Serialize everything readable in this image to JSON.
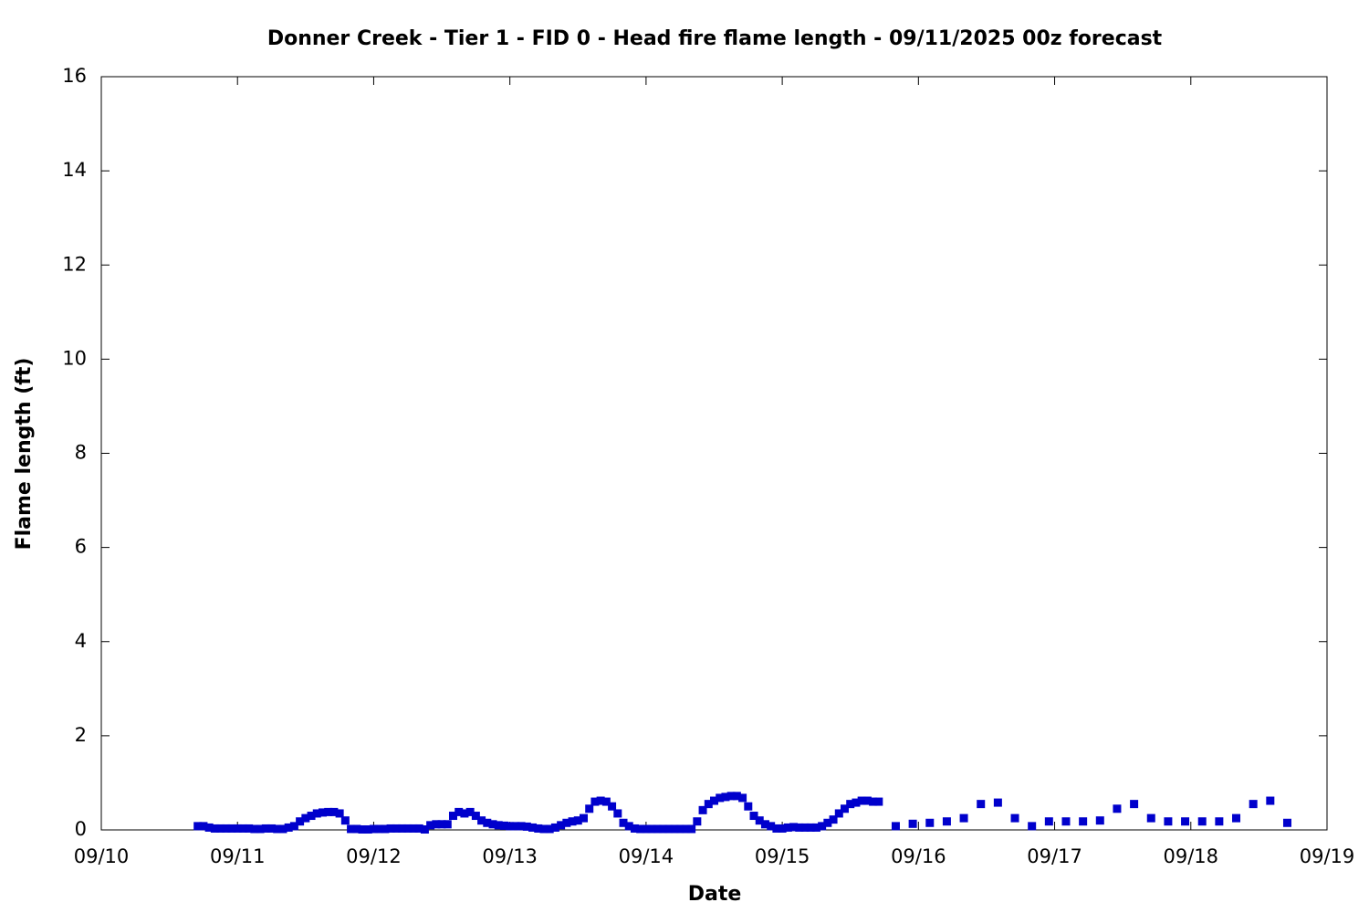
{
  "chart_data": {
    "type": "scatter",
    "title": "Donner Creek - Tier 1 - FID 0 - Head fire flame length - 09/11/2025 00z forecast",
    "xlabel": "Date",
    "ylabel": "Flame length (ft)",
    "color": "#0000cc",
    "x": [
      "09/10 17:00",
      "09/10 18:00",
      "09/10 19:00",
      "09/10 20:00",
      "09/10 21:00",
      "09/10 22:00",
      "09/10 23:00",
      "09/11 00:00",
      "09/11 01:00",
      "09/11 02:00",
      "09/11 03:00",
      "09/11 04:00",
      "09/11 05:00",
      "09/11 06:00",
      "09/11 07:00",
      "09/11 08:00",
      "09/11 09:00",
      "09/11 10:00",
      "09/11 11:00",
      "09/11 12:00",
      "09/11 13:00",
      "09/11 14:00",
      "09/11 15:00",
      "09/11 16:00",
      "09/11 17:00",
      "09/11 18:00",
      "09/11 19:00",
      "09/11 20:00",
      "09/11 21:00",
      "09/11 22:00",
      "09/11 23:00",
      "09/12 00:00",
      "09/12 01:00",
      "09/12 02:00",
      "09/12 03:00",
      "09/12 04:00",
      "09/12 05:00",
      "09/12 06:00",
      "09/12 07:00",
      "09/12 08:00",
      "09/12 09:00",
      "09/12 10:00",
      "09/12 11:00",
      "09/12 12:00",
      "09/12 13:00",
      "09/12 14:00",
      "09/12 15:00",
      "09/12 16:00",
      "09/12 17:00",
      "09/12 18:00",
      "09/12 19:00",
      "09/12 20:00",
      "09/12 21:00",
      "09/12 22:00",
      "09/12 23:00",
      "09/13 00:00",
      "09/13 01:00",
      "09/13 02:00",
      "09/13 03:00",
      "09/13 04:00",
      "09/13 05:00",
      "09/13 06:00",
      "09/13 07:00",
      "09/13 08:00",
      "09/13 09:00",
      "09/13 10:00",
      "09/13 11:00",
      "09/13 12:00",
      "09/13 13:00",
      "09/13 14:00",
      "09/13 15:00",
      "09/13 16:00",
      "09/13 17:00",
      "09/13 18:00",
      "09/13 19:00",
      "09/13 20:00",
      "09/13 21:00",
      "09/13 22:00",
      "09/13 23:00",
      "09/14 00:00",
      "09/14 01:00",
      "09/14 02:00",
      "09/14 03:00",
      "09/14 04:00",
      "09/14 05:00",
      "09/14 06:00",
      "09/14 07:00",
      "09/14 08:00",
      "09/14 09:00",
      "09/14 10:00",
      "09/14 11:00",
      "09/14 12:00",
      "09/14 13:00",
      "09/14 14:00",
      "09/14 15:00",
      "09/14 16:00",
      "09/14 17:00",
      "09/14 18:00",
      "09/14 19:00",
      "09/14 20:00",
      "09/14 21:00",
      "09/14 22:00",
      "09/14 23:00",
      "09/15 00:00",
      "09/15 01:00",
      "09/15 02:00",
      "09/15 03:00",
      "09/15 04:00",
      "09/15 05:00",
      "09/15 06:00",
      "09/15 07:00",
      "09/15 08:00",
      "09/15 09:00",
      "09/15 10:00",
      "09/15 11:00",
      "09/15 12:00",
      "09/15 13:00",
      "09/15 14:00",
      "09/15 15:00",
      "09/15 16:00",
      "09/15 17:00",
      "09/15 20:00",
      "09/15 23:00",
      "09/16 02:00",
      "09/16 05:00",
      "09/16 08:00",
      "09/16 11:00",
      "09/16 14:00",
      "09/16 17:00",
      "09/16 20:00",
      "09/16 23:00",
      "09/17 02:00",
      "09/17 05:00",
      "09/17 08:00",
      "09/17 11:00",
      "09/17 14:00",
      "09/17 17:00",
      "09/17 20:00",
      "09/17 23:00",
      "09/18 02:00",
      "09/18 05:00",
      "09/18 08:00",
      "09/18 11:00",
      "09/18 14:00",
      "09/18 17:00"
    ],
    "values": [
      0.08,
      0.08,
      0.05,
      0.03,
      0.03,
      0.03,
      0.03,
      0.03,
      0.03,
      0.03,
      0.02,
      0.02,
      0.03,
      0.03,
      0.02,
      0.02,
      0.05,
      0.08,
      0.18,
      0.25,
      0.3,
      0.35,
      0.37,
      0.38,
      0.38,
      0.35,
      0.2,
      0.02,
      0.02,
      0.01,
      0.01,
      0.02,
      0.02,
      0.02,
      0.03,
      0.03,
      0.03,
      0.03,
      0.03,
      0.03,
      0.01,
      0.1,
      0.12,
      0.12,
      0.12,
      0.3,
      0.38,
      0.35,
      0.38,
      0.3,
      0.2,
      0.15,
      0.12,
      0.1,
      0.09,
      0.08,
      0.08,
      0.08,
      0.07,
      0.05,
      0.03,
      0.02,
      0.02,
      0.05,
      0.1,
      0.15,
      0.18,
      0.2,
      0.25,
      0.45,
      0.6,
      0.62,
      0.6,
      0.5,
      0.35,
      0.15,
      0.08,
      0.03,
      0.02,
      0.02,
      0.02,
      0.02,
      0.02,
      0.02,
      0.02,
      0.02,
      0.02,
      0.02,
      0.18,
      0.42,
      0.55,
      0.62,
      0.68,
      0.7,
      0.72,
      0.72,
      0.68,
      0.5,
      0.3,
      0.2,
      0.12,
      0.08,
      0.03,
      0.03,
      0.05,
      0.06,
      0.05,
      0.05,
      0.05,
      0.05,
      0.08,
      0.15,
      0.22,
      0.35,
      0.45,
      0.55,
      0.58,
      0.62,
      0.62,
      0.6,
      0.6,
      0.08,
      0.13,
      0.15,
      0.18,
      0.25,
      0.55,
      0.58,
      0.25,
      0.08,
      0.18,
      0.18,
      0.18,
      0.2,
      0.45,
      0.55,
      0.25,
      0.18,
      0.18,
      0.18,
      0.18,
      0.25,
      0.55,
      0.62,
      0.15
    ],
    "xlim": [
      "09/10",
      "09/19"
    ],
    "xticks": [
      "09/10",
      "09/11",
      "09/12",
      "09/13",
      "09/14",
      "09/15",
      "09/16",
      "09/17",
      "09/18",
      "09/19"
    ],
    "ylim": [
      0,
      16
    ],
    "yticks": [
      0,
      2,
      4,
      6,
      8,
      10,
      12,
      14,
      16
    ]
  }
}
